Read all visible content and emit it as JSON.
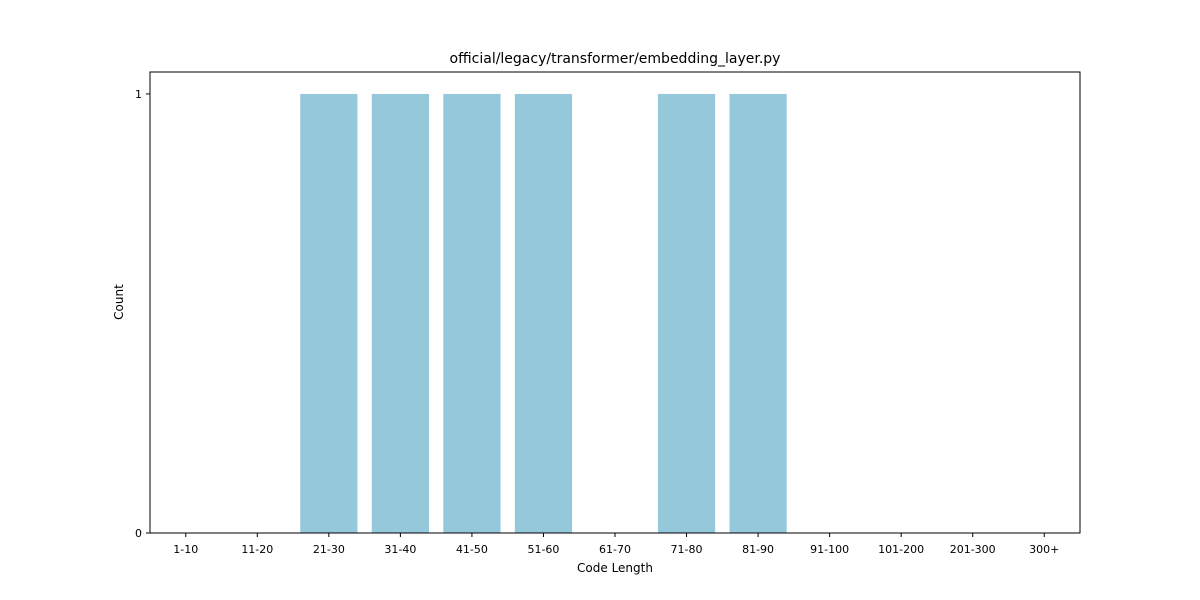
{
  "chart_data": {
    "type": "bar",
    "title": "official/legacy/transformer/embedding_layer.py",
    "xlabel": "Code Length",
    "ylabel": "Count",
    "categories": [
      "1-10",
      "11-20",
      "21-30",
      "31-40",
      "41-50",
      "51-60",
      "61-70",
      "71-80",
      "81-90",
      "91-100",
      "101-200",
      "201-300",
      "300+"
    ],
    "values": [
      0,
      0,
      1,
      1,
      1,
      1,
      0,
      1,
      1,
      0,
      0,
      0,
      0
    ],
    "yticks": [
      0,
      1
    ],
    "ytick_labels": [
      "0",
      "1"
    ],
    "ylim": [
      0,
      1.05
    ],
    "grid": false,
    "bar_color": "#96c8dc"
  }
}
